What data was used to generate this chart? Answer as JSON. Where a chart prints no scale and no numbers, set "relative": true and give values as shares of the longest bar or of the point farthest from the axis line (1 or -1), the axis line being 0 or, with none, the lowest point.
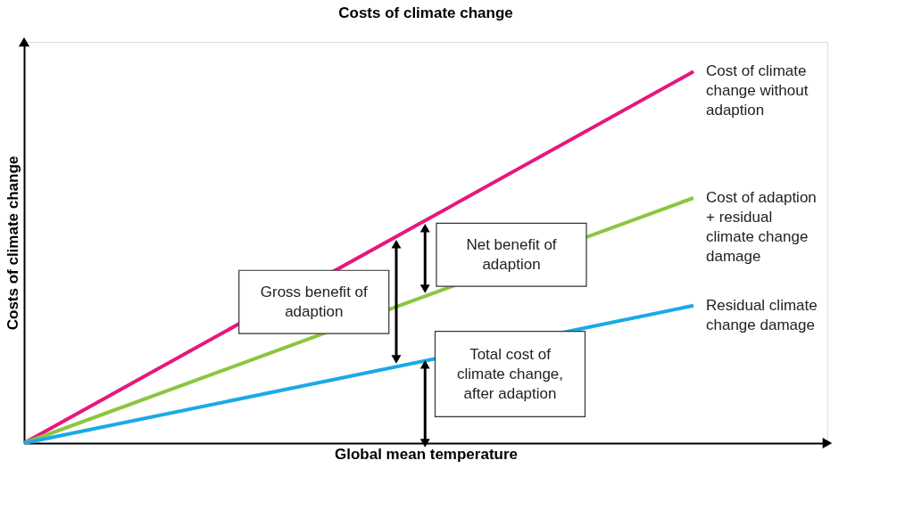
{
  "chart_data": {
    "type": "line",
    "title": "Costs of climate change",
    "xlabel": "Global mean temperature",
    "ylabel": "Costs of climate change",
    "relative": true,
    "marker": "none",
    "line_style": "solid",
    "grid": false,
    "categories": [
      null,
      null
    ],
    "series": [
      {
        "name": "Cost of climate change without adaption",
        "color": "#e6177e",
        "values": [
          0,
          1
        ]
      },
      {
        "name": "Cost of adaption + residual climate change damage",
        "color": "#8cc63f",
        "values": [
          0,
          0.66
        ]
      },
      {
        "name": "Residual climate change damage",
        "color": "#1ba9e6",
        "values": [
          0,
          0.37
        ]
      }
    ],
    "annotations": [
      "Gross benefit of adaption",
      "Net benefit of adaption",
      "Total cost of climate change, after adaption"
    ]
  }
}
